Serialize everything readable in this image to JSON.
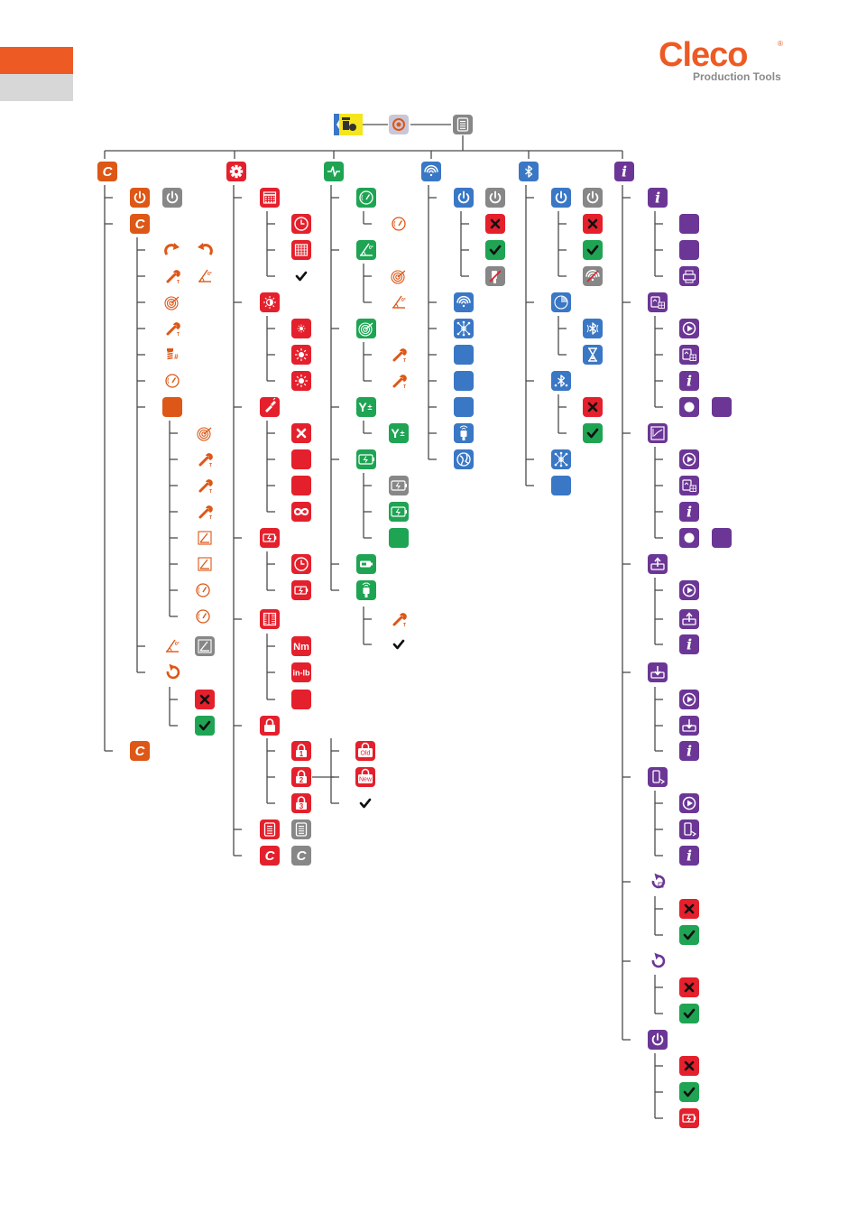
{
  "brand": {
    "name": "Cleco",
    "registered_mark": "®",
    "tagline": "Production Tools",
    "accent_orange": "#ee5a24",
    "tab_gray": "#d7d7d7"
  },
  "colors": {
    "tool": "#dd5716",
    "gray": "#878787",
    "settings": "#e4202c",
    "monitor": "#1fa454",
    "wifi": "#3a77c4",
    "bluetooth": "#3a77c4",
    "info": "#6b3695",
    "yellow": "#f5e51d",
    "line": "#4a4a4a"
  },
  "text_badges": {
    "nm": "Nm",
    "inlb": "in-lb",
    "old": "Old",
    "new": "New",
    "step_1": "1",
    "step_2": "2",
    "step_3": "3"
  },
  "icon_names": [
    "tool-head-icon",
    "power-icon",
    "cleco-c-icon",
    "redo-arrow-icon",
    "undo-arrow-icon",
    "wrench-icon",
    "angle-icon",
    "target-icon",
    "screw-icon",
    "gauge-icon",
    "gear-icon",
    "pulse-icon",
    "wifi-icon",
    "bluetooth-icon",
    "info-icon",
    "calendar-icon",
    "clock-icon",
    "grid-icon",
    "check-icon",
    "brightness-icon",
    "flashlight-icon",
    "close-icon",
    "infinity-icon",
    "battery-icon",
    "ruler-icon",
    "lock-icon",
    "document-icon",
    "network-icon",
    "globe-icon",
    "hourglass-icon",
    "upload-icon",
    "download-icon",
    "phone-icon",
    "printer-icon",
    "play-icon",
    "record-icon",
    "chart-icon",
    "reset-icon"
  ]
}
